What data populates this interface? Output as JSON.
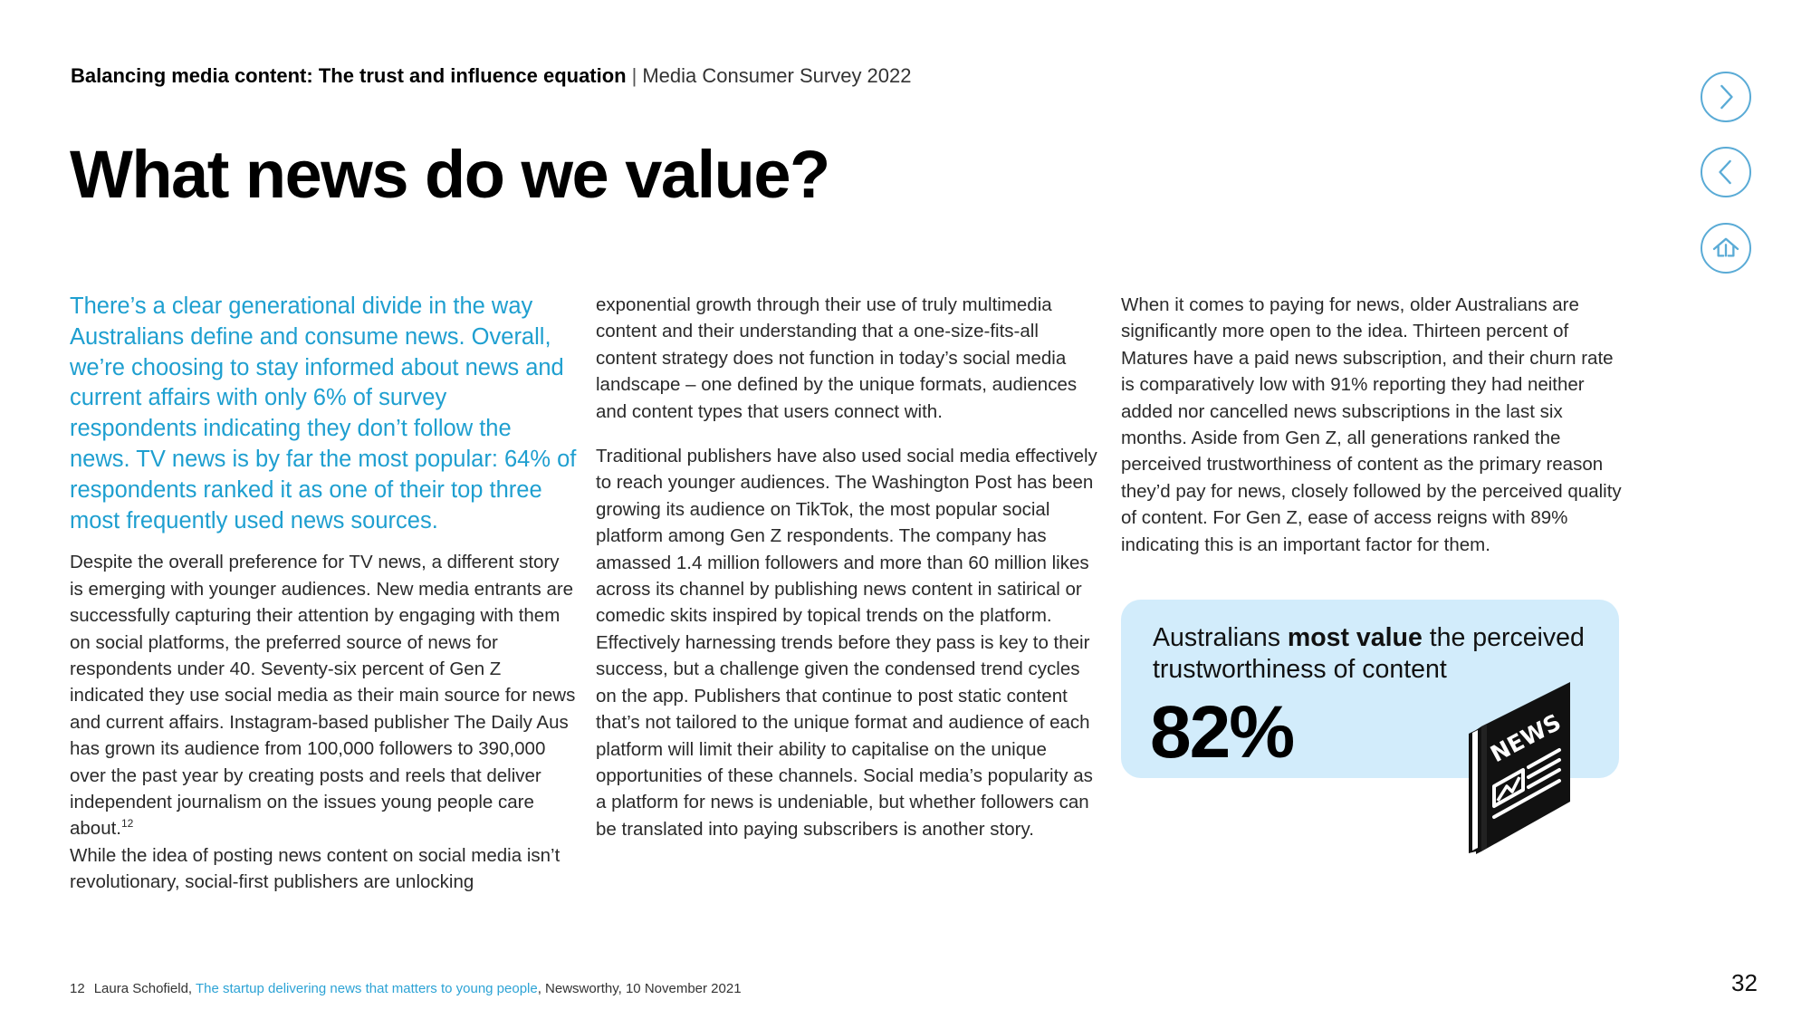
{
  "header": {
    "title_bold": "Balancing media content: The trust and influence equation",
    "separator": "|",
    "subtitle": "Media Consumer Survey 2022"
  },
  "page_title": "What news do we value?",
  "nav": {
    "next_icon": "chevron-right-icon",
    "prev_icon": "chevron-left-icon",
    "home_icon": "home-icon",
    "accent_color": "#5aabd6"
  },
  "column1": {
    "intro": "There’s a clear generational divide in the way Australians define and consume news. Overall, we’re choosing to stay informed about news and current affairs with only 6% of survey respondents indicating they don’t follow the news. TV news is by far the most popular: 64% of respondents ranked it as one of their top three most frequently used news sources.",
    "paragraph": "Despite the overall preference for TV news, a different story is emerging with younger audiences. New media entrants are successfully capturing their attention by engaging with them on social platforms, the preferred source of news for respondents under 40. Seventy-six percent of Gen Z indicated they use social media as their main source for news and current affairs. Instagram-based publisher The Daily Aus has grown its audience from 100,000 followers to 390,000 over the past year by creating posts and reels that deliver independent journalism on the issues young people care about.",
    "footnote_ref": "12",
    "paragraph_cont": "While the idea of posting news content on social media isn’t revolutionary, social-first publishers are unlocking"
  },
  "column2": {
    "paragraph1": "exponential growth through their use of truly multimedia content and their understanding that a one-size-fits-all content strategy does not function in today’s social media landscape – one defined by the unique formats, audiences and content types that users connect with.",
    "paragraph2": "Traditional publishers have also used social media effectively to reach younger audiences. The Washington Post has been growing its audience on TikTok, the most popular social platform among Gen Z respondents. The company has amassed 1.4 million followers and more than 60 million likes across its channel by publishing news content in satirical or comedic skits inspired by topical trends on the platform. Effectively harnessing trends before they pass is key to their success, but a challenge given the condensed trend cycles on the app. Publishers that continue to post static content that’s not tailored to the unique format and audience of each platform will limit their ability to capitalise on the unique opportunities of these channels. Social media’s popularity as a platform for news is undeniable, but whether followers can be translated into paying subscribers is another story."
  },
  "column3": {
    "paragraph": "When it comes to paying for news, older Australians are significantly more open to the idea. Thirteen percent of Matures have a paid news subscription, and their churn rate is comparatively low with 91% reporting they had neither added nor cancelled news subscriptions in the last six months. Aside from Gen Z, all generations ranked the perceived trustworthiness of content as the primary reason they’d pay for news, closely followed by the perceived quality of content. For Gen Z, ease of access reigns with 89% indicating this is an important factor for them."
  },
  "callout": {
    "text_before": "Australians ",
    "text_bold": "most value",
    "text_after": " the perceived trustworthiness of content",
    "stat": "82%",
    "icon": "newspaper-icon",
    "icon_label": "NEWS",
    "background_color": "#d2ecfb"
  },
  "footnote": {
    "number": "12",
    "author": "Laura Schofield, ",
    "link_text": "The startup delivering news that matters to young people",
    "source": ", Newsworthy, 10 November 2021"
  },
  "page_number": "32"
}
